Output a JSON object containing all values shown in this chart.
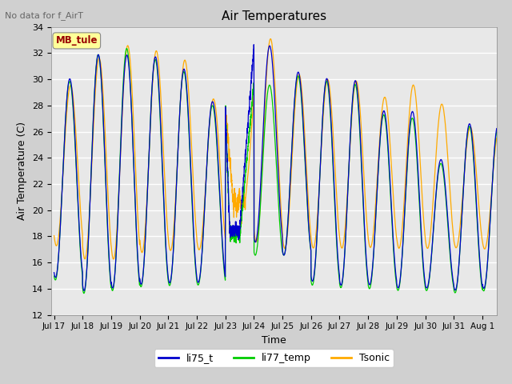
{
  "title": "Air Temperatures",
  "note": "No data for f_AirT",
  "xlabel": "Time",
  "ylabel": "Air Temperature (C)",
  "ylim": [
    12,
    34
  ],
  "tick_labels": [
    "Jul 17",
    "Jul 18",
    "Jul 19",
    "Jul 20",
    "Jul 21",
    "Jul 22",
    "Jul 23",
    "Jul 24",
    "Jul 25",
    "Jul 26",
    "Jul 27",
    "Jul 28",
    "Jul 29",
    "Jul 30",
    "Jul 31",
    "Aug 1"
  ],
  "legend_colors": [
    "#0000cc",
    "#00cc00",
    "#ffaa00"
  ],
  "legend_labels": [
    "li75_t",
    "li77_temp",
    "Tsonic"
  ],
  "label_box_color": "#ffff99",
  "label_box_text": "MB_tule",
  "label_box_text_color": "#990000",
  "fig_bg": "#d0d0d0",
  "plot_bg": "#e8e8e8"
}
